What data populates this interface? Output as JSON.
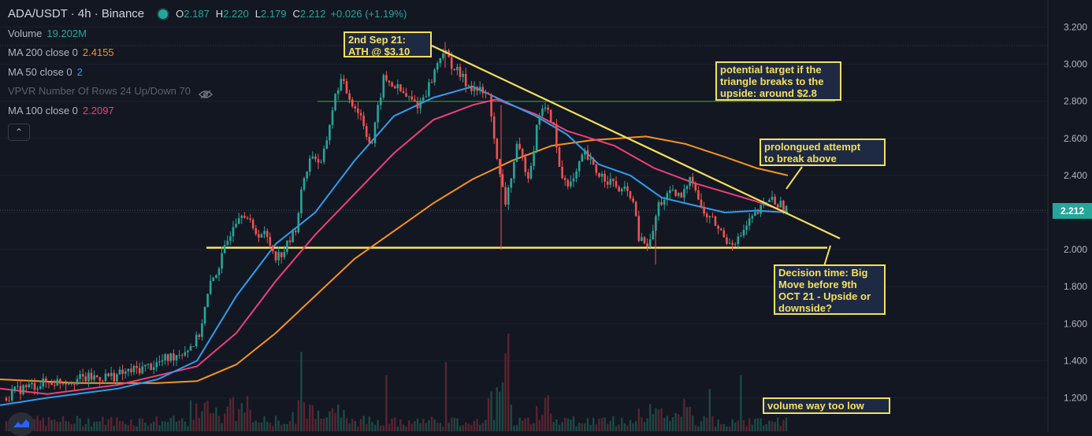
{
  "header": {
    "symbol": "ADA/USDT · 4h · Binance",
    "open_key": "O",
    "open": "2.187",
    "high_key": "H",
    "high": "2.220",
    "low_key": "L",
    "low": "2.179",
    "close_key": "C",
    "close": "2.212",
    "change": "+0.026 (+1.19%)"
  },
  "indicators": [
    {
      "name": "Volume",
      "value": "19.202M",
      "color": "#26a69a"
    },
    {
      "name": "MA 200 close 0",
      "value": "2.4155",
      "color": "#f7931a"
    },
    {
      "name": "MA 50 close 0",
      "value": "2",
      "color": "#2f9cf0"
    },
    {
      "name": "VPVR Number Of Rows 24 Up/Down 70",
      "value": "",
      "color": "#5d606b"
    },
    {
      "name": "MA 100 close 0",
      "value": "2.2097",
      "color": "#ec407a"
    }
  ],
  "price_axis": {
    "ticks": [
      "3.200",
      "3.000",
      "2.800",
      "2.600",
      "2.400",
      "2.200",
      "2.000",
      "1.800",
      "1.600",
      "1.400",
      "1.200"
    ],
    "current_price": "2.212"
  },
  "annotations": {
    "ath": "2nd Sep 21:\nATH @ $3.10",
    "target": "potential target if the\ntriangle breaks to the\nupside: around $2.8",
    "attempt": "prolongued attempt\nto break above",
    "decision": "Decision time: Big\nMove before 9th\nOCT 21 - Upside or\ndownside?",
    "volume": "volume way too low"
  },
  "colors": {
    "background": "#131722",
    "up": "#26a69a",
    "down": "#ef5350",
    "ma200": "#f7931a",
    "ma100": "#ec407a",
    "ma50": "#2f9cf0",
    "trendline": "#f5e05c",
    "target_line": "#2e7d32"
  },
  "chart_data": {
    "type": "candlestick",
    "symbol": "ADA/USDT",
    "interval": "4h",
    "ylim": [
      1.14,
      3.28
    ],
    "price_path": [
      [
        0,
        1.18
      ],
      [
        30,
        1.25
      ],
      [
        60,
        1.28
      ],
      [
        100,
        1.3
      ],
      [
        150,
        1.32
      ],
      [
        200,
        1.38
      ],
      [
        240,
        1.46
      ],
      [
        255,
        1.52
      ],
      [
        270,
        1.8
      ],
      [
        285,
        1.95
      ],
      [
        300,
        2.15
      ],
      [
        312,
        2.22
      ],
      [
        325,
        2.1
      ],
      [
        340,
        2.08
      ],
      [
        355,
        1.96
      ],
      [
        365,
        2.0
      ],
      [
        378,
        2.1
      ],
      [
        390,
        2.4
      ],
      [
        400,
        2.52
      ],
      [
        412,
        2.45
      ],
      [
        425,
        2.75
      ],
      [
        435,
        2.92
      ],
      [
        450,
        2.8
      ],
      [
        462,
        2.72
      ],
      [
        475,
        2.55
      ],
      [
        490,
        2.92
      ],
      [
        505,
        2.88
      ],
      [
        520,
        2.82
      ],
      [
        535,
        2.78
      ],
      [
        550,
        2.9
      ],
      [
        565,
        3.08
      ],
      [
        580,
        2.98
      ],
      [
        595,
        2.9
      ],
      [
        610,
        2.86
      ],
      [
        625,
        2.82
      ],
      [
        635,
        2.45
      ],
      [
        645,
        2.25
      ],
      [
        660,
        2.55
      ],
      [
        675,
        2.4
      ],
      [
        690,
        2.78
      ],
      [
        705,
        2.7
      ],
      [
        715,
        2.4
      ],
      [
        730,
        2.35
      ],
      [
        745,
        2.52
      ],
      [
        760,
        2.42
      ],
      [
        775,
        2.38
      ],
      [
        790,
        2.32
      ],
      [
        805,
        2.3
      ],
      [
        815,
        2.05
      ],
      [
        828,
        2.02
      ],
      [
        840,
        2.25
      ],
      [
        855,
        2.3
      ],
      [
        870,
        2.28
      ],
      [
        880,
        2.42
      ],
      [
        895,
        2.2
      ],
      [
        910,
        2.15
      ],
      [
        925,
        2.05
      ],
      [
        940,
        2.05
      ],
      [
        955,
        2.15
      ],
      [
        970,
        2.22
      ],
      [
        980,
        2.28
      ],
      [
        990,
        2.25
      ],
      [
        1000,
        2.22
      ]
    ],
    "ma200": [
      [
        0,
        1.3
      ],
      [
        100,
        1.28
      ],
      [
        200,
        1.28
      ],
      [
        250,
        1.29
      ],
      [
        300,
        1.38
      ],
      [
        350,
        1.55
      ],
      [
        400,
        1.75
      ],
      [
        450,
        1.95
      ],
      [
        500,
        2.1
      ],
      [
        550,
        2.25
      ],
      [
        600,
        2.38
      ],
      [
        650,
        2.48
      ],
      [
        700,
        2.56
      ],
      [
        750,
        2.59
      ],
      [
        820,
        2.61
      ],
      [
        870,
        2.57
      ],
      [
        920,
        2.5
      ],
      [
        960,
        2.44
      ],
      [
        1000,
        2.4
      ]
    ],
    "ma100": [
      [
        0,
        1.25
      ],
      [
        60,
        1.22
      ],
      [
        150,
        1.27
      ],
      [
        250,
        1.37
      ],
      [
        300,
        1.55
      ],
      [
        350,
        1.83
      ],
      [
        400,
        2.08
      ],
      [
        450,
        2.3
      ],
      [
        500,
        2.52
      ],
      [
        550,
        2.7
      ],
      [
        600,
        2.78
      ],
      [
        630,
        2.81
      ],
      [
        680,
        2.73
      ],
      [
        720,
        2.64
      ],
      [
        780,
        2.56
      ],
      [
        830,
        2.44
      ],
      [
        880,
        2.36
      ],
      [
        920,
        2.31
      ],
      [
        960,
        2.26
      ],
      [
        1000,
        2.2
      ]
    ],
    "ma50": [
      [
        0,
        1.16
      ],
      [
        60,
        1.2
      ],
      [
        150,
        1.25
      ],
      [
        200,
        1.3
      ],
      [
        250,
        1.4
      ],
      [
        300,
        1.75
      ],
      [
        350,
        2.03
      ],
      [
        400,
        2.2
      ],
      [
        450,
        2.48
      ],
      [
        500,
        2.72
      ],
      [
        550,
        2.82
      ],
      [
        600,
        2.88
      ],
      [
        630,
        2.82
      ],
      [
        680,
        2.72
      ],
      [
        720,
        2.62
      ],
      [
        760,
        2.46
      ],
      [
        800,
        2.4
      ],
      [
        840,
        2.28
      ],
      [
        880,
        2.24
      ],
      [
        920,
        2.2
      ],
      [
        960,
        2.21
      ],
      [
        1000,
        2.2
      ]
    ],
    "horizontal_lines": [
      {
        "price": 2.01,
        "x_start": 262,
        "x_end": 1050,
        "color": "#f5e05c"
      },
      {
        "price": 2.8,
        "x_start": 403,
        "x_end": 1060,
        "color": "#2e7d32"
      },
      {
        "price": 3.1,
        "x_start": 0,
        "x_end": 1330,
        "color": "#363a45",
        "dashed": true
      },
      {
        "price": 2.212,
        "x_start": 0,
        "x_end": 1330,
        "color": "#4a4e59",
        "dashed": true
      }
    ],
    "trendline": [
      [
        548,
        3.1
      ],
      [
        1066,
        2.06
      ]
    ]
  }
}
